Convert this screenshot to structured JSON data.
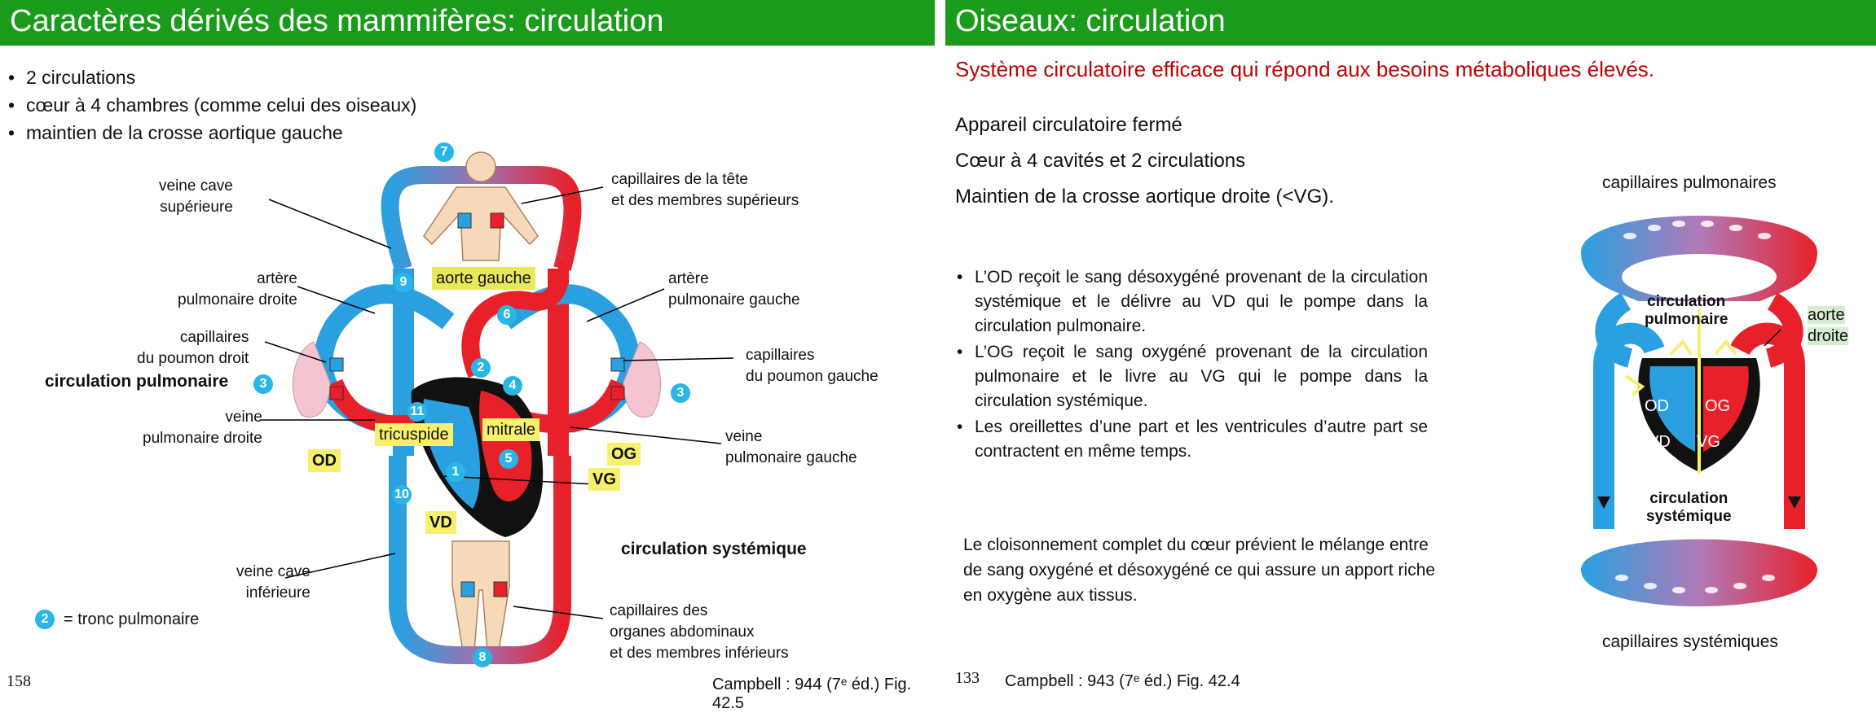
{
  "left": {
    "title": "Caractères dérivés des mammifères: circulation",
    "bullets": [
      "2 circulations",
      "cœur à 4 chambres (comme celui des oiseaux)",
      "maintien de la crosse aortique gauche"
    ],
    "labels": {
      "veine_cave_sup": "veine cave\nsupérieure",
      "capillaires_tete": "capillaires de la tête\net des membres supérieurs",
      "artere_pulm_droite": "artère\npulmonaire droite",
      "aorte_gauche": "aorte gauche",
      "artere_pulm_gauche": "artère\npulmonaire gauche",
      "capillaires_poumon_droit": "capillaires\ndu poumon droit",
      "capillaires_poumon_gauche": "capillaires\ndu poumon gauche",
      "circulation_pulmonaire": "circulation pulmonaire",
      "veine_pulm_droite": "veine\npulmonaire droite",
      "veine_pulm_gauche": "veine\npulmonaire gauche",
      "tricuspide": "tricuspide",
      "mitrale": "mitrale",
      "od": "OD",
      "og": "OG",
      "vg": "VG",
      "vd": "VD",
      "veine_cave_inf": "veine cave\ninférieure",
      "circulation_systemique": "circulation systémique",
      "capillaires_organes": "capillaires des\norganes abdominaux\net des membres inférieurs",
      "legend_tronc": "= tronc pulmonaire"
    },
    "numbers": {
      "n1": "1",
      "n2": "2",
      "n3a": "3",
      "n3b": "3",
      "n4": "4",
      "n5": "5",
      "n6": "6",
      "n7": "7",
      "n8": "8",
      "n9": "9",
      "n10": "10",
      "n11": "11",
      "legend_num": "2"
    },
    "page_number": "158",
    "citation": "Campbell : 944 (7ᵉ éd.) Fig. 42.5"
  },
  "right": {
    "title": "Oiseaux: circulation",
    "subtitle": "Système circulatoire efficace qui répond aux besoins métaboliques élevés.",
    "facts": [
      "Appareil circulatoire fermé",
      "Cœur à 4 cavités  et 2 circulations",
      "Maintien de la crosse aortique droite (<VG)."
    ],
    "bullets": [
      "L’OD reçoit le sang désoxygéné provenant de la circulation systémique et le délivre au VD qui le pompe dans la circulation pulmonaire.",
      "L’OG reçoit le sang oxygéné provenant de la circulation pulmonaire et le livre au VG qui le pompe dans la circulation systémique.",
      "Les oreillettes d’une part et les ventricules d’autre part se contractent en même temps."
    ],
    "paragraph": "Le cloisonnement complet du cœur prévient le mélange entre de sang oxygéné et désoxygéné ce qui assure un apport riche en oxygène aux tissus.",
    "diagram": {
      "cap_pulm": "capillaires pulmonaires",
      "circ_pulm": "circulation\npulmonaire",
      "aorte_droite": "aorte\ndroite",
      "od": "OD",
      "og": "OG",
      "vd": "VD",
      "vg": "VG",
      "circ_sys": "circulation\nsystémique",
      "cap_sys": "capillaires systémiques"
    },
    "page_number": "133",
    "citation": "Campbell : 943 (7ᵉ éd.) Fig. 42.4"
  },
  "colors": {
    "title_bar": "#1b9b1b",
    "subtitle_red": "#c00000",
    "blood_red": "#e8202a",
    "blood_blue": "#2aa0e0",
    "highlight_yellow": "#f7f06d",
    "number_blue": "#29b6e6"
  }
}
